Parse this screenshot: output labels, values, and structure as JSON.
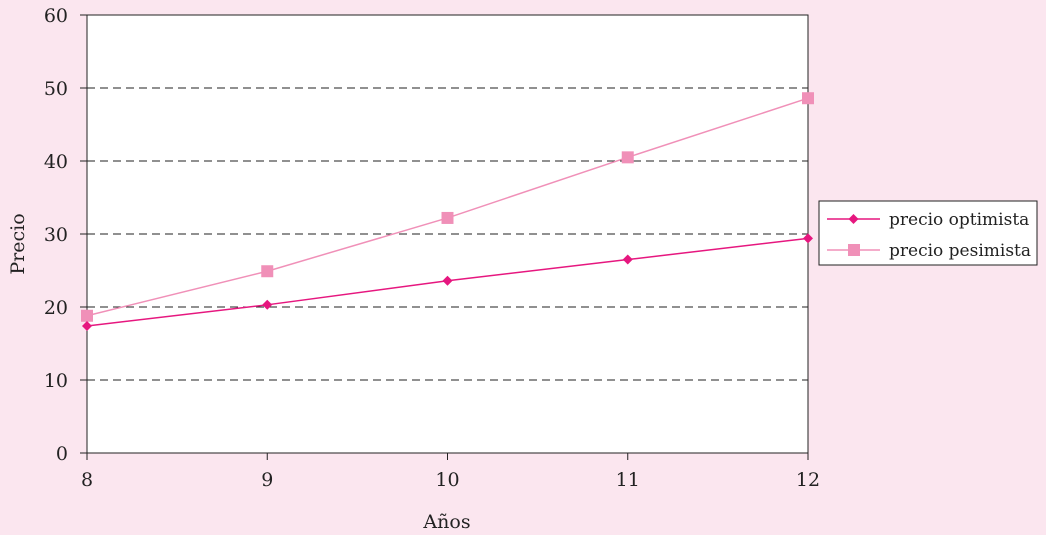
{
  "chart_data": {
    "type": "line",
    "title": "",
    "xlabel": "Años",
    "ylabel": "Precio",
    "x": [
      8,
      9,
      10,
      11,
      12
    ],
    "xlim": [
      8,
      12
    ],
    "ylim": [
      0,
      60
    ],
    "x_ticks": [
      "8",
      "9",
      "10",
      "11",
      "12"
    ],
    "y_ticks": [
      "0",
      "10",
      "20",
      "30",
      "40",
      "50",
      "60"
    ],
    "grid": "horizontal dashed",
    "legend_position": "right",
    "series": [
      {
        "name": "precio optimista",
        "values": [
          17.4,
          20.3,
          23.6,
          26.5,
          29.4
        ],
        "color": "#e6177f",
        "marker": "diamond"
      },
      {
        "name": "precio pesimista",
        "values": [
          18.8,
          24.9,
          32.2,
          40.5,
          48.6
        ],
        "color": "#f090b8",
        "marker": "square"
      }
    ]
  }
}
